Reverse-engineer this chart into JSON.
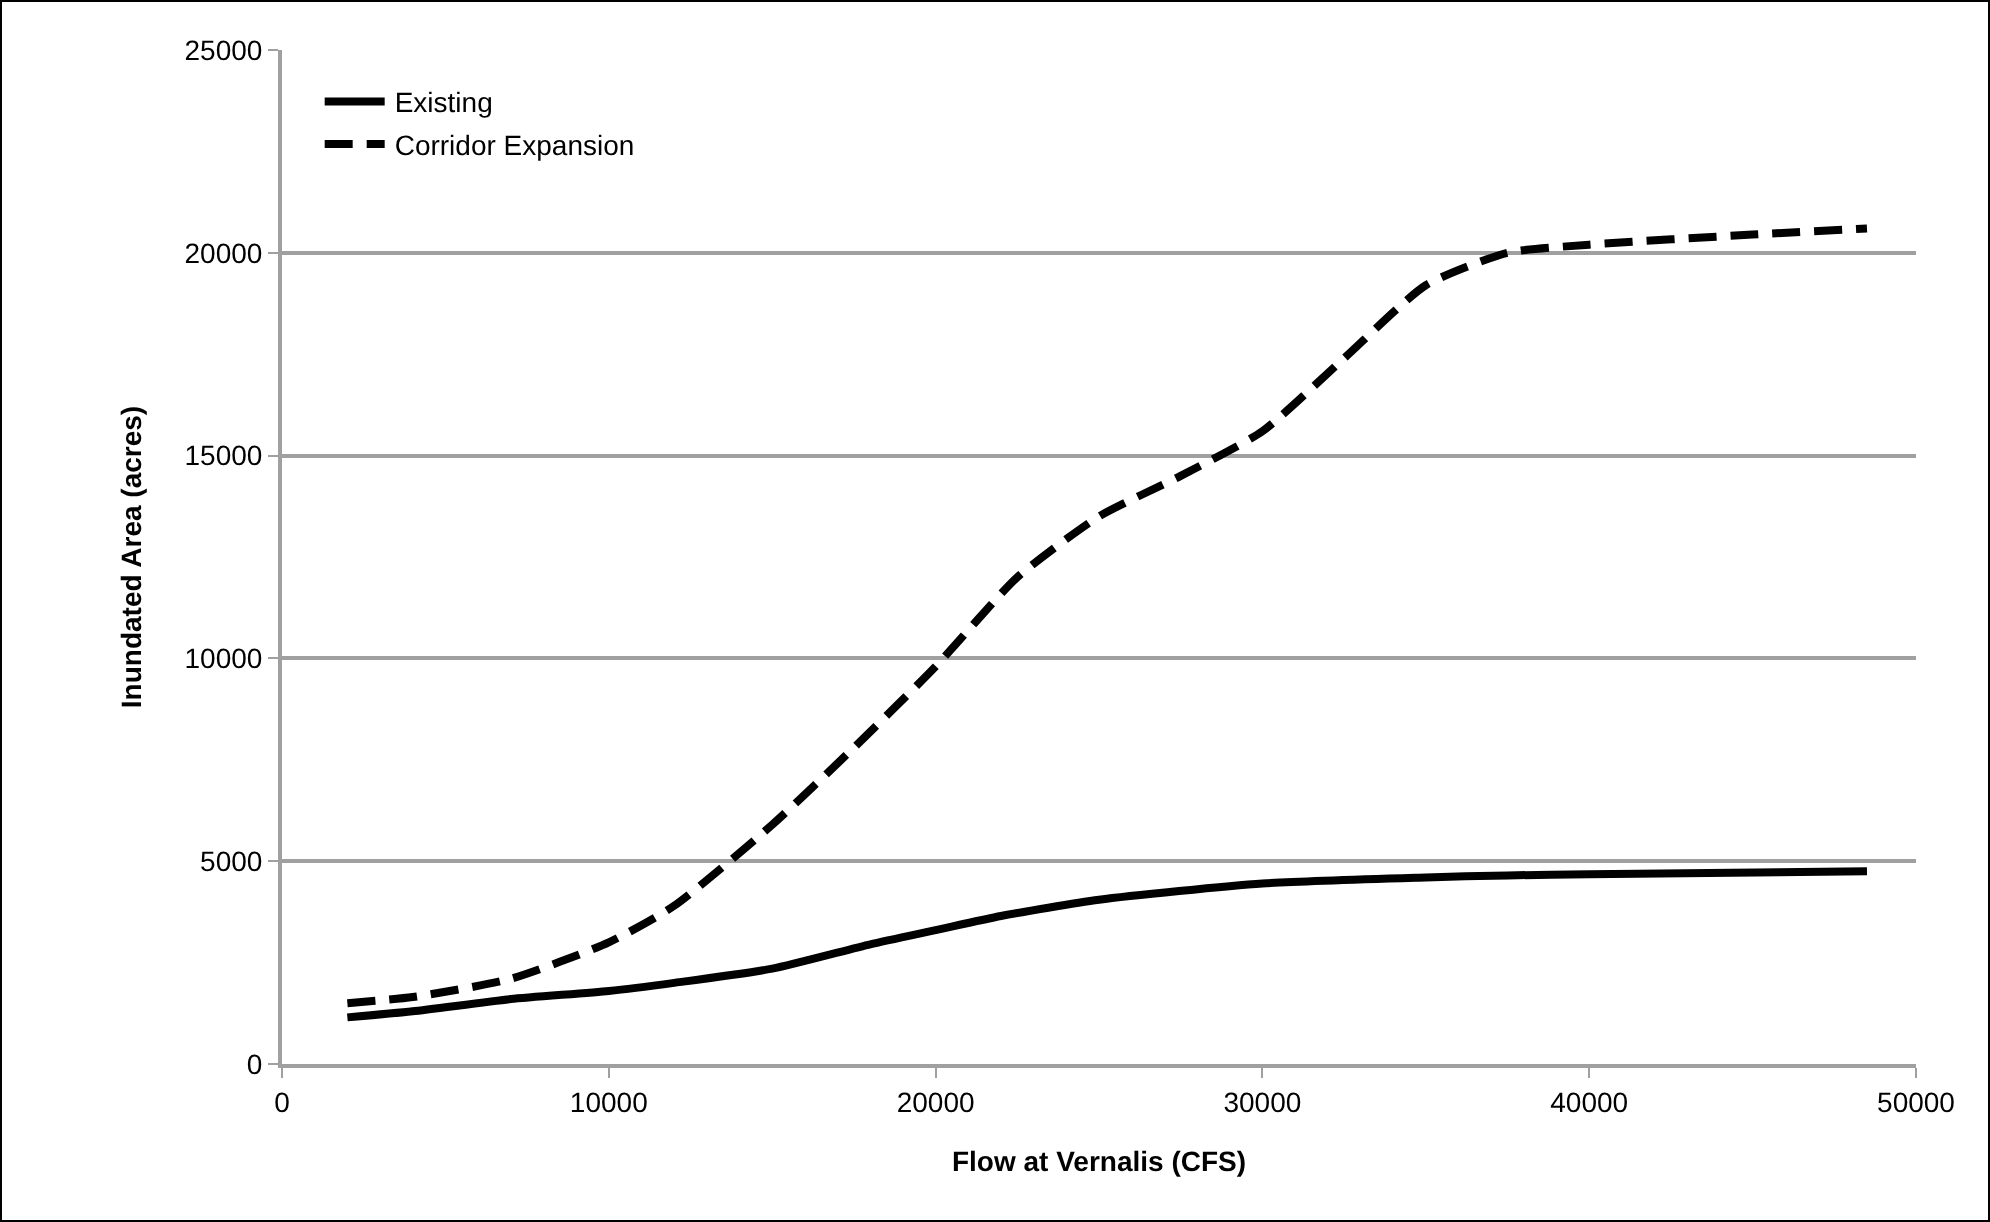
{
  "chart_data": {
    "type": "line",
    "xlabel": "Flow at Vernalis (CFS)",
    "ylabel": "Inundated Area (acres)",
    "xlim": [
      0,
      50000
    ],
    "xticks": [
      0,
      10000,
      20000,
      30000,
      40000,
      50000
    ],
    "ylim": [
      0,
      25000
    ],
    "yticks": [
      0,
      5000,
      10000,
      15000,
      20000,
      25000
    ],
    "grid": "y",
    "legend": "top left",
    "marker": "none",
    "series": [
      {
        "name": "Existing",
        "color": "#000000",
        "line_style": "solid",
        "x": [
          2000,
          4000,
          7000,
          10000,
          12000,
          15000,
          18000,
          20000,
          22000,
          25000,
          30000,
          35000,
          37500,
          40000,
          48500
        ],
        "values": [
          1150,
          1300,
          1600,
          1800,
          2000,
          2350,
          2950,
          3300,
          3650,
          4050,
          4450,
          4600,
          4650,
          4680,
          4750
        ]
      },
      {
        "name": "Corridor Expansion",
        "color": "#000000",
        "line_style": "dashed",
        "x": [
          2000,
          4000,
          7000,
          10000,
          12000,
          15000,
          17500,
          20000,
          22500,
          25000,
          27500,
          30000,
          32500,
          35000,
          37500,
          40000,
          45000,
          48500
        ],
        "values": [
          1500,
          1650,
          2100,
          3000,
          3900,
          5900,
          7800,
          9800,
          12000,
          13500,
          14500,
          15600,
          17400,
          19200,
          20000,
          20200,
          20450,
          20600
        ]
      }
    ]
  }
}
